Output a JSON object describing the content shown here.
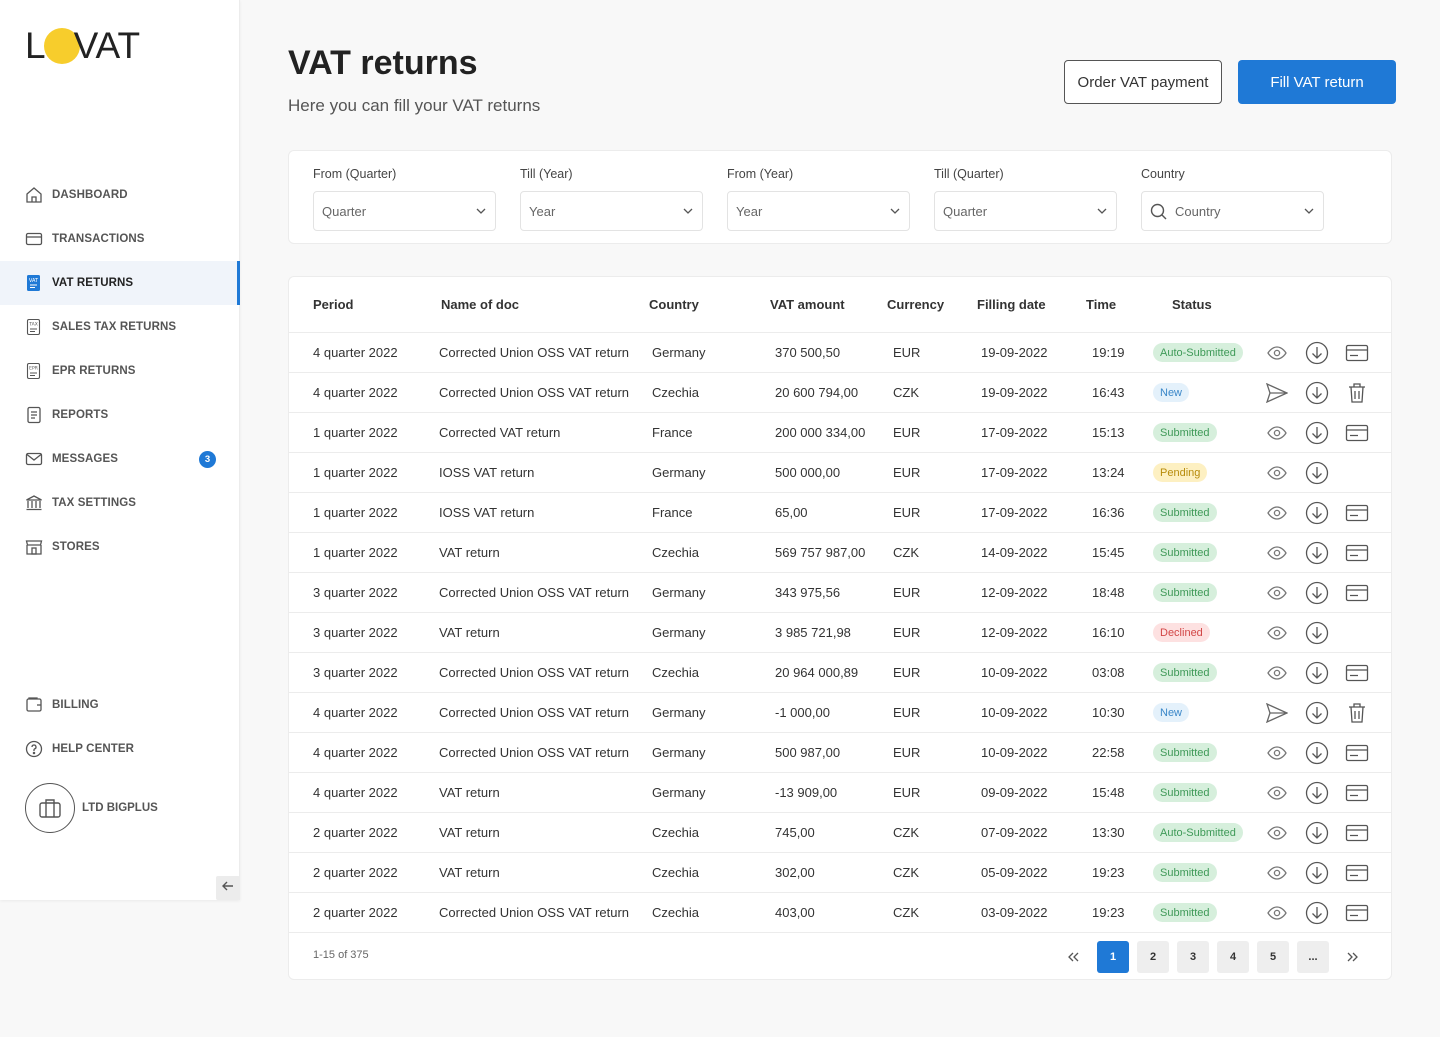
{
  "brand": {
    "logo_left": "L",
    "logo_right": "VAT",
    "accent": "#f7cd2c",
    "primary": "#1f79d6"
  },
  "sidebar": {
    "items": [
      {
        "label": "DASHBOARD",
        "icon": "home-icon"
      },
      {
        "label": "TRANSACTIONS",
        "icon": "card-icon"
      },
      {
        "label": "VAT RETURNS",
        "icon": "vat-doc-icon",
        "active": true
      },
      {
        "label": "SALES TAX RETURNS",
        "icon": "tax-doc-icon"
      },
      {
        "label": "EPR RETURNS",
        "icon": "epr-doc-icon"
      },
      {
        "label": "REPORTS",
        "icon": "report-icon"
      },
      {
        "label": "MESSAGES",
        "icon": "mail-icon",
        "badge": "3"
      },
      {
        "label": "TAX SETTINGS",
        "icon": "bank-icon"
      },
      {
        "label": "STORES",
        "icon": "store-icon"
      }
    ],
    "billing": "BILLING",
    "help": "HELP CENTER",
    "company": "LTD BIGPLUS"
  },
  "header": {
    "title": "VAT returns",
    "subtitle": "Here you can fill your VAT returns",
    "order_button": "Order VAT payment",
    "fill_button": "Fill VAT return"
  },
  "filters": [
    {
      "label": "From (Quarter)",
      "placeholder": "Quarter"
    },
    {
      "label": "Till (Year)",
      "placeholder": "Year"
    },
    {
      "label": "From (Year)",
      "placeholder": "Year"
    },
    {
      "label": "Till (Quarter)",
      "placeholder": "Quarter"
    },
    {
      "label": "Country",
      "placeholder": "Country",
      "search": true
    }
  ],
  "table": {
    "columns": [
      "Period",
      "Name of doc",
      "Country",
      "VAT amount",
      "Currency",
      "Filling date",
      "Time",
      "Status"
    ],
    "rows": [
      {
        "period": "4 quarter 2022",
        "name": "Corrected Union OSS VAT return",
        "country": "Germany",
        "amount": "370 500,50",
        "currency": "EUR",
        "date": "19-09-2022",
        "time": "19:19",
        "status": "Auto-Submitted",
        "tone": "green",
        "actions": [
          "view",
          "download",
          "pay"
        ]
      },
      {
        "period": "4 quarter 2022",
        "name": "Corrected Union OSS VAT return",
        "country": "Czechia",
        "amount": "20 600 794,00",
        "currency": "CZK",
        "date": "19-09-2022",
        "time": "16:43",
        "status": "New",
        "tone": "blue",
        "actions": [
          "send",
          "download",
          "delete"
        ]
      },
      {
        "period": "1 quarter 2022",
        "name": "Corrected VAT return",
        "country": "France",
        "amount": "200 000 334,00",
        "currency": "EUR",
        "date": "17-09-2022",
        "time": "15:13",
        "status": "Submitted",
        "tone": "green",
        "actions": [
          "view",
          "download",
          "pay"
        ]
      },
      {
        "period": "1 quarter 2022",
        "name": "IOSS VAT return",
        "country": "Germany",
        "amount": "500 000,00",
        "currency": "EUR",
        "date": "17-09-2022",
        "time": "13:24",
        "status": "Pending",
        "tone": "yellow",
        "actions": [
          "view",
          "download"
        ]
      },
      {
        "period": "1 quarter 2022",
        "name": "IOSS VAT return",
        "country": "France",
        "amount": "65,00",
        "currency": "EUR",
        "date": "17-09-2022",
        "time": "16:36",
        "status": "Submitted",
        "tone": "green",
        "actions": [
          "view",
          "download",
          "pay"
        ]
      },
      {
        "period": "1 quarter 2022",
        "name": "VAT return",
        "country": "Czechia",
        "amount": "569 757 987,00",
        "currency": "CZK",
        "date": "14-09-2022",
        "time": "15:45",
        "status": "Submitted",
        "tone": "green",
        "actions": [
          "view",
          "download",
          "pay"
        ]
      },
      {
        "period": "3 quarter 2022",
        "name": "Corrected Union OSS VAT return",
        "country": "Germany",
        "amount": "343 975,56",
        "currency": "EUR",
        "date": "12-09-2022",
        "time": "18:48",
        "status": "Submitted",
        "tone": "green",
        "actions": [
          "view",
          "download",
          "pay"
        ]
      },
      {
        "period": "3 quarter 2022",
        "name": "VAT return",
        "country": "Germany",
        "amount": "3 985 721,98",
        "currency": "EUR",
        "date": "12-09-2022",
        "time": "16:10",
        "status": "Declined",
        "tone": "red",
        "actions": [
          "view",
          "download"
        ]
      },
      {
        "period": "3 quarter 2022",
        "name": "Corrected Union OSS VAT return",
        "country": "Czechia",
        "amount": "20 964 000,89",
        "currency": "EUR",
        "date": "10-09-2022",
        "time": "03:08",
        "status": "Submitted",
        "tone": "green",
        "actions": [
          "view",
          "download",
          "pay"
        ]
      },
      {
        "period": "4 quarter 2022",
        "name": "Corrected Union OSS VAT return",
        "country": "Germany",
        "amount": "-1 000,00",
        "currency": "EUR",
        "date": "10-09-2022",
        "time": "10:30",
        "status": "New",
        "tone": "blue",
        "actions": [
          "send",
          "download",
          "delete"
        ]
      },
      {
        "period": "4 quarter 2022",
        "name": "Corrected Union OSS VAT return",
        "country": "Germany",
        "amount": "500 987,00",
        "currency": "EUR",
        "date": "10-09-2022",
        "time": "22:58",
        "status": "Submitted",
        "tone": "green",
        "actions": [
          "view",
          "download",
          "pay"
        ]
      },
      {
        "period": "4 quarter 2022",
        "name": "VAT return",
        "country": "Germany",
        "amount": "-13 909,00",
        "currency": "EUR",
        "date": "09-09-2022",
        "time": "15:48",
        "status": "Submitted",
        "tone": "green",
        "actions": [
          "view",
          "download",
          "pay"
        ]
      },
      {
        "period": "2 quarter 2022",
        "name": "VAT return",
        "country": "Czechia",
        "amount": "745,00",
        "currency": "CZK",
        "date": "07-09-2022",
        "time": "13:30",
        "status": "Auto-Submitted",
        "tone": "green",
        "actions": [
          "view",
          "download",
          "pay"
        ]
      },
      {
        "period": "2 quarter 2022",
        "name": "VAT return",
        "country": "Czechia",
        "amount": "302,00",
        "currency": "CZK",
        "date": "05-09-2022",
        "time": "19:23",
        "status": "Submitted",
        "tone": "green",
        "actions": [
          "view",
          "download",
          "pay"
        ]
      },
      {
        "period": "2 quarter 2022",
        "name": "Corrected Union OSS VAT return",
        "country": "Czechia",
        "amount": "403,00",
        "currency": "CZK",
        "date": "03-09-2022",
        "time": "19:23",
        "status": "Submitted",
        "tone": "green",
        "actions": [
          "view",
          "download",
          "pay"
        ]
      }
    ]
  },
  "pagination": {
    "info": "1-15 of 375",
    "pages": [
      "1",
      "2",
      "3",
      "4",
      "5",
      "..."
    ],
    "current": "1"
  }
}
